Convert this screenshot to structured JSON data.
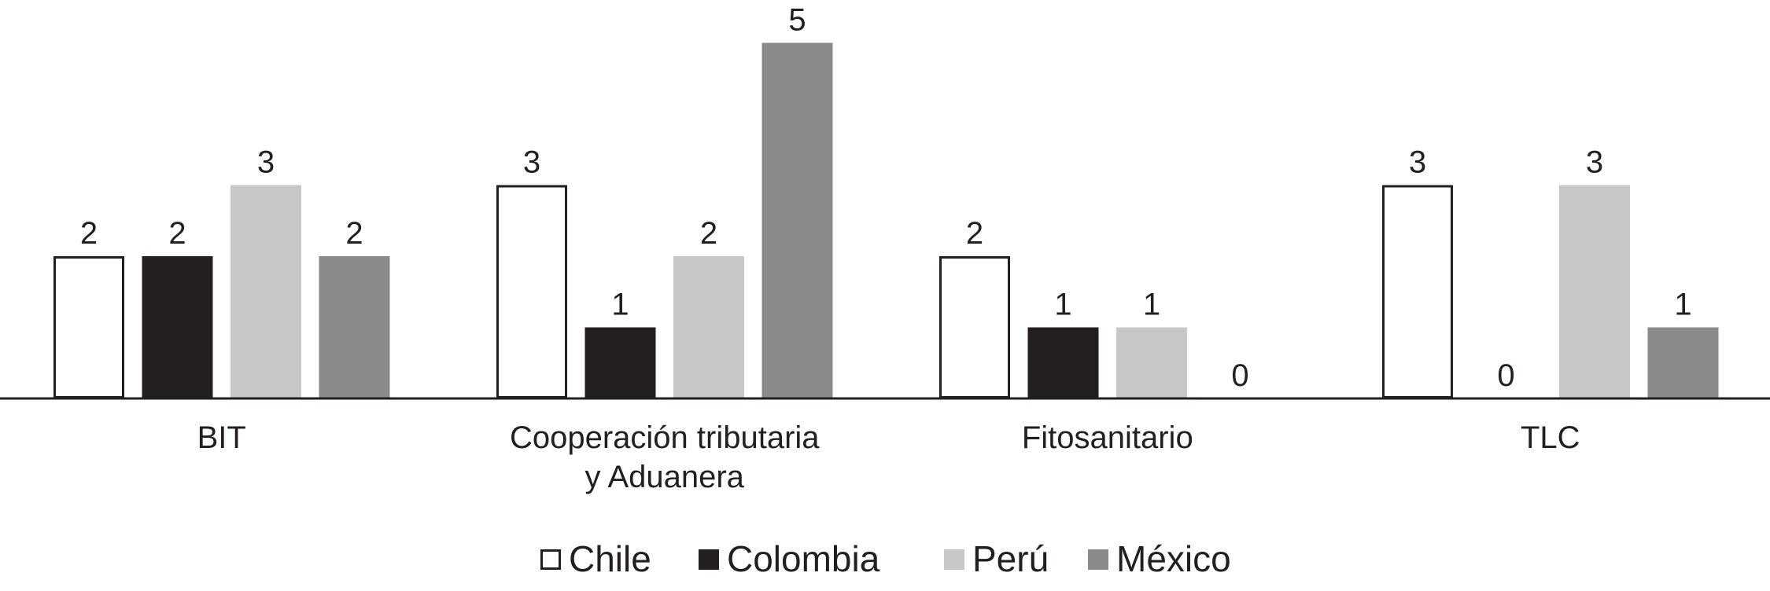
{
  "chart_data": {
    "type": "bar",
    "categories": [
      [
        "BIT"
      ],
      [
        "Cooperación tributaria",
        "y Aduanera"
      ],
      [
        "Fitosanitario"
      ],
      [
        "TLC"
      ]
    ],
    "series": [
      {
        "name": "Chile",
        "values": [
          2,
          3,
          2,
          3
        ],
        "color": "#ffffff",
        "stroke": "#231f20"
      },
      {
        "name": "Colombia",
        "values": [
          2,
          1,
          1,
          0
        ],
        "color": "#231f20",
        "stroke": "none"
      },
      {
        "name": "Perú",
        "values": [
          3,
          2,
          1,
          3
        ],
        "color": "#c6c7c9",
        "stroke": "none"
      },
      {
        "name": "México",
        "values": [
          2,
          5,
          0,
          1
        ],
        "color": "#898a8c",
        "stroke": "none"
      }
    ],
    "value_labels": [
      [
        "2",
        "2",
        "3",
        "2"
      ],
      [
        "3",
        "1",
        "2",
        "5"
      ],
      [
        "2",
        "1",
        "1",
        "0"
      ],
      [
        "3",
        "0",
        "3",
        "1"
      ]
    ],
    "ylim": [
      0,
      5
    ],
    "grid": false,
    "legend_position": "bottom-center",
    "title": "",
    "xlabel": "",
    "ylabel": ""
  }
}
